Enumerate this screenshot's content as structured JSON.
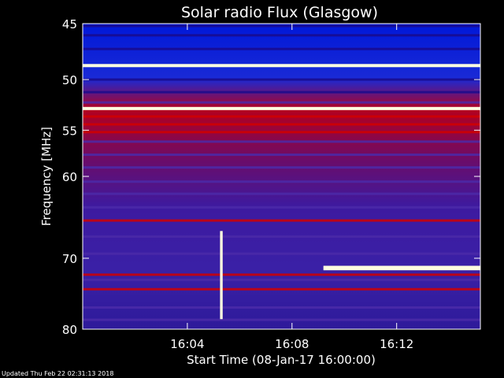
{
  "chart_data": {
    "type": "heatmap",
    "title": "Solar radio Flux (Glasgow)",
    "xlabel": "Start Time (08-Jan-17 16:00:00)",
    "ylabel": "Frequency [MHz]",
    "x_ticks": [
      "16:04",
      "16:08",
      "16:12"
    ],
    "x_tick_minutes": [
      4,
      8,
      12
    ],
    "xlim_minutes": [
      0,
      15.2
    ],
    "y_ticks": [
      45,
      50,
      55,
      60,
      70,
      80
    ],
    "ylim": [
      45,
      80
    ],
    "y_scale": "log",
    "colors": {
      "background": "#000000",
      "low": "#1a0a8c",
      "mid": "#4b2aa8",
      "high": "#d10000",
      "peak": "#ffffe0"
    },
    "bands": [
      {
        "freq": 45.2,
        "level": 0.15
      },
      {
        "freq": 46.0,
        "level": 0.05
      },
      {
        "freq": 47.2,
        "level": 0.1
      },
      {
        "freq": 48.7,
        "level": 1.0
      },
      {
        "freq": 50.0,
        "level": 0.12
      },
      {
        "freq": 51.2,
        "level": 0.2
      },
      {
        "freq": 52.2,
        "level": 0.45
      },
      {
        "freq": 52.8,
        "level": 0.95
      },
      {
        "freq": 53.6,
        "level": 0.7
      },
      {
        "freq": 54.4,
        "level": 0.75
      },
      {
        "freq": 55.2,
        "level": 0.62
      },
      {
        "freq": 56.2,
        "level": 0.5
      },
      {
        "freq": 57.6,
        "level": 0.45
      },
      {
        "freq": 59.0,
        "level": 0.4
      },
      {
        "freq": 60.6,
        "level": 0.38
      },
      {
        "freq": 62.0,
        "level": 0.55
      },
      {
        "freq": 63.6,
        "level": 0.35
      },
      {
        "freq": 65.2,
        "level": 0.6
      },
      {
        "freq": 67.2,
        "level": 0.3
      },
      {
        "freq": 69.4,
        "level": 0.33
      },
      {
        "freq": 72.2,
        "level": 0.65
      },
      {
        "freq": 72.9,
        "level": 0.55
      },
      {
        "freq": 74.2,
        "level": 0.6
      },
      {
        "freq": 76.8,
        "level": 0.4
      },
      {
        "freq": 78.6,
        "level": 0.35
      }
    ],
    "events": [
      {
        "freq_start": 71.0,
        "freq_end": 71.6,
        "t_start_minutes": 9.2,
        "t_end_minutes": 15.2,
        "level": 1.0
      },
      {
        "freq_start": 66.5,
        "freq_end": 78.5,
        "t_start_minutes": 5.25,
        "t_end_minutes": 5.35,
        "level": 0.9
      }
    ],
    "footer": "Updated Thu Feb 22 02:31:13 2018"
  }
}
